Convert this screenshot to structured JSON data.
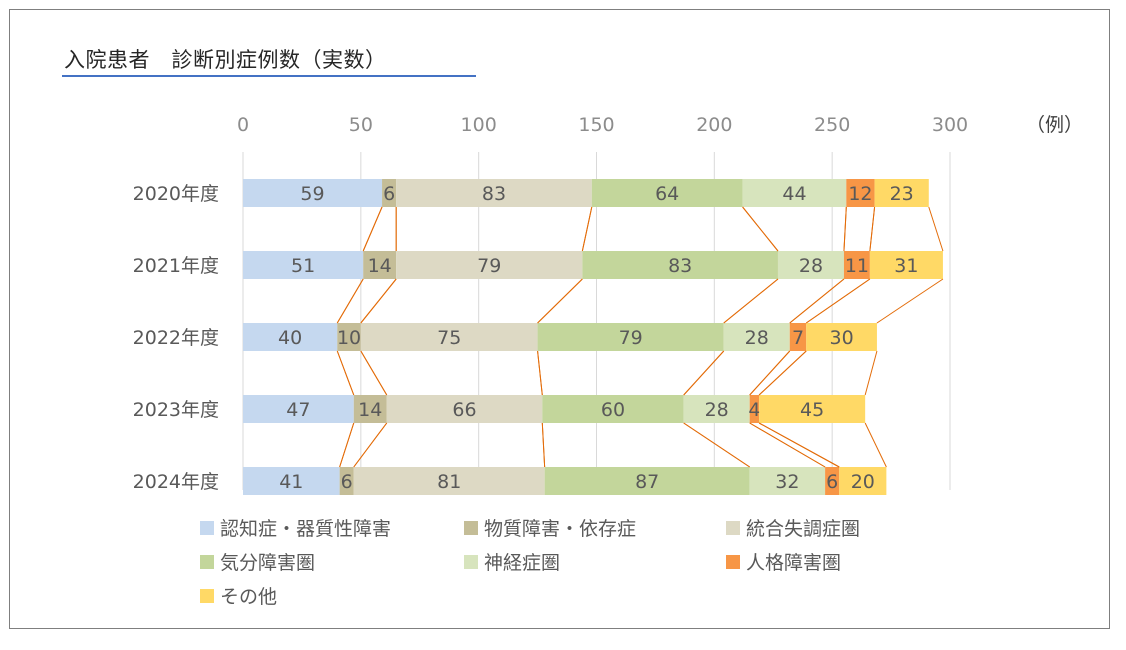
{
  "title": "入院患者　診断別症例数（実数）",
  "unit_label": "（例）",
  "chart_data": {
    "type": "bar",
    "orientation": "horizontal-stacked",
    "title": "入院患者　診断別症例数（実数）",
    "xlim": [
      0,
      300
    ],
    "ticks": [
      0,
      50,
      100,
      150,
      200,
      250,
      300
    ],
    "grid": true,
    "legend_position": "bottom",
    "categories": [
      "2020年度",
      "2021年度",
      "2022年度",
      "2023年度",
      "2024年度"
    ],
    "series": [
      {
        "name": "認知症・器質性障害",
        "color": "#c5d8ef",
        "values": [
          59,
          51,
          40,
          47,
          41
        ]
      },
      {
        "name": "物質障害・依存症",
        "color": "#c4bd97",
        "values": [
          6,
          14,
          10,
          14,
          6
        ]
      },
      {
        "name": "統合失調症圏",
        "color": "#ddd9c4",
        "values": [
          83,
          79,
          75,
          66,
          81
        ]
      },
      {
        "name": "気分障害圏",
        "color": "#c3d69b",
        "values": [
          64,
          83,
          79,
          60,
          87
        ]
      },
      {
        "name": "神経症圏",
        "color": "#d7e4bd",
        "values": [
          44,
          28,
          28,
          28,
          32
        ]
      },
      {
        "name": "人格障害圏",
        "color": "#f79646",
        "values": [
          12,
          11,
          7,
          4,
          6
        ]
      },
      {
        "name": "その他",
        "color": "#ffd966",
        "values": [
          23,
          31,
          30,
          45,
          20
        ]
      }
    ],
    "series_line_color": "#e36c09"
  }
}
